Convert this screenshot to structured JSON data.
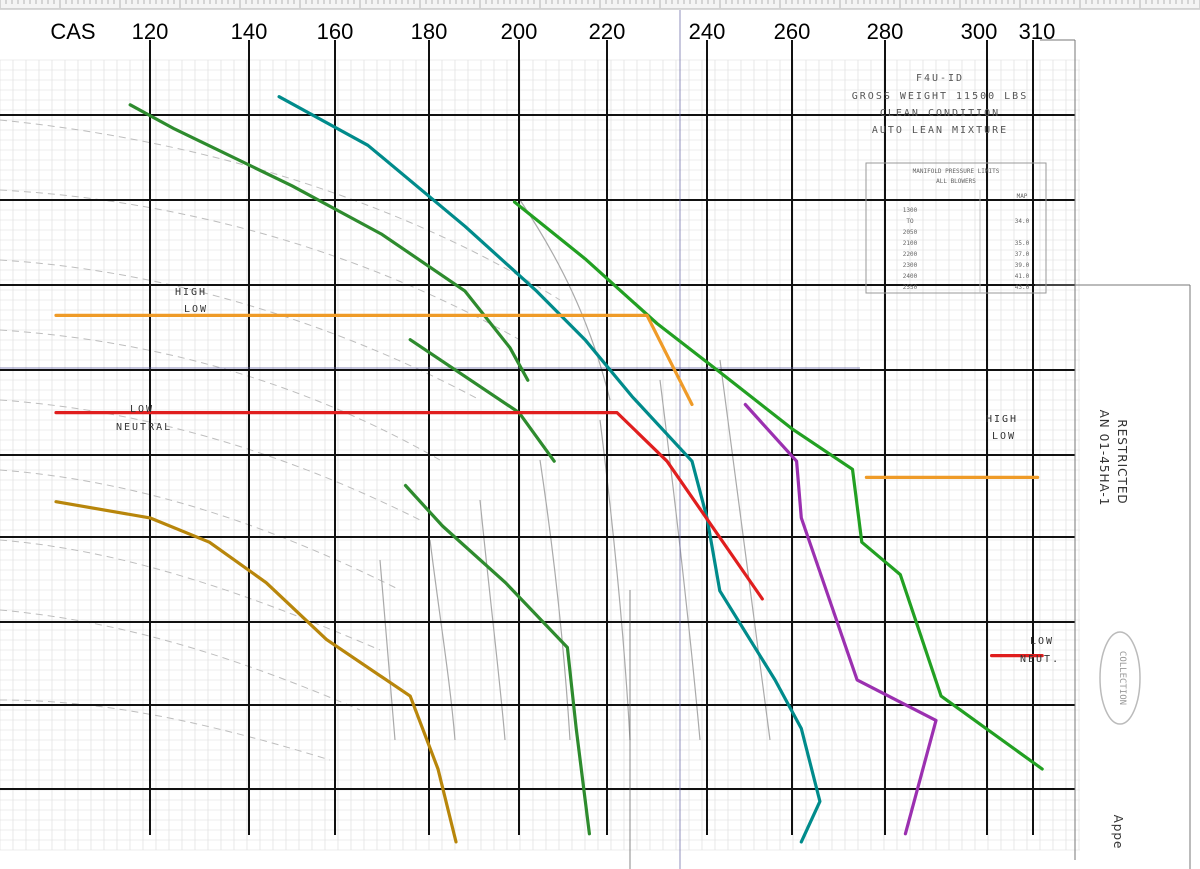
{
  "chart_data": {
    "type": "line",
    "title": "F4U-ID",
    "subtitle_lines": [
      "GROSS WEIGHT 11500 LBS",
      "CLEAN CONDITION",
      "AUTO LEAN MIXTURE"
    ],
    "side_text": [
      "RESTRICTED",
      "AN 01-45HA-1"
    ],
    "stamp_text": "COLLECTION",
    "corner_text": "Appe",
    "xaxis": {
      "label": "CAS",
      "ticks": [
        120,
        140,
        160,
        180,
        200,
        220,
        240,
        260,
        280,
        300,
        310
      ]
    },
    "table": {
      "title": "MANIFOLD PRESSURE LIMITS",
      "subtitle": "ALL BLOWERS",
      "col_header": "MAP",
      "rows": [
        {
          "rpm": "1300",
          "map": ""
        },
        {
          "rpm": "TO",
          "map": "34.0"
        },
        {
          "rpm": "2050",
          "map": ""
        },
        {
          "rpm": "2100",
          "map": "35.0"
        },
        {
          "rpm": "2200",
          "map": "37.0"
        },
        {
          "rpm": "2300",
          "map": "39.0"
        },
        {
          "rpm": "2400",
          "map": "41.0"
        },
        {
          "rpm": "2550",
          "map": "43.0"
        }
      ]
    },
    "mode_labels": [
      {
        "lines": [
          "HIGH",
          "LOW"
        ],
        "color": "#333333"
      },
      {
        "lines": [
          "LOW",
          "NEUTRAL"
        ],
        "color": "#333333"
      },
      {
        "lines": [
          "HIGH",
          "LOW"
        ],
        "color": "#333333"
      },
      {
        "lines": [
          "LOW",
          "NEUT."
        ],
        "color": "#333333"
      }
    ],
    "series": [
      {
        "color": "#008b8b",
        "values": [
          [
            147,
            0.93
          ],
          [
            167,
            0.87
          ],
          [
            188,
            0.77
          ],
          [
            204,
            0.69
          ],
          [
            215,
            0.63
          ],
          [
            225,
            0.56
          ],
          [
            237,
            0.48
          ],
          [
            240,
            0.41
          ],
          [
            243,
            0.32
          ],
          [
            256,
            0.21
          ],
          [
            262,
            0.15
          ],
          [
            266,
            0.06
          ],
          [
            262,
            0.01
          ]
        ]
      },
      {
        "color": "#2e8b2e",
        "values": [
          [
            116,
            0.92
          ],
          [
            125,
            0.89
          ],
          [
            150,
            0.82
          ],
          [
            170,
            0.76
          ],
          [
            188,
            0.69
          ],
          [
            198,
            0.62
          ],
          [
            202,
            0.58
          ]
        ]
      },
      {
        "color": "#2e8b2e",
        "values": [
          [
            176,
            0.63
          ],
          [
            200,
            0.54
          ],
          [
            208,
            0.48
          ]
        ]
      },
      {
        "color": "#2e8b2e",
        "values": [
          [
            175,
            0.45
          ],
          [
            183,
            0.4
          ],
          [
            197,
            0.33
          ],
          [
            211,
            0.25
          ],
          [
            213,
            0.15
          ],
          [
            216,
            0.02
          ]
        ]
      },
      {
        "color": "#22a022",
        "values": [
          [
            199,
            0.8
          ],
          [
            215,
            0.73
          ],
          [
            230,
            0.65
          ],
          [
            243,
            0.59
          ],
          [
            260,
            0.52
          ],
          [
            273,
            0.47
          ],
          [
            275,
            0.38
          ],
          [
            283,
            0.34
          ],
          [
            291,
            0.19
          ],
          [
            312,
            0.1
          ]
        ]
      },
      {
        "color": "#9b30b0",
        "values": [
          [
            249,
            0.55
          ],
          [
            261,
            0.48
          ],
          [
            262,
            0.41
          ],
          [
            268,
            0.31
          ],
          [
            274,
            0.21
          ],
          [
            290,
            0.16
          ],
          [
            284,
            0.02
          ]
        ]
      },
      {
        "color": "#ef9b28",
        "values": [
          [
            101,
            0.66
          ],
          [
            228,
            0.66
          ],
          [
            237,
            0.55
          ]
        ]
      },
      {
        "color": "#ef9b28",
        "values": [
          [
            276,
            0.46
          ],
          [
            311,
            0.46
          ]
        ]
      },
      {
        "color": "#e01e1e",
        "values": [
          [
            101,
            0.54
          ],
          [
            222,
            0.54
          ],
          [
            232,
            0.48
          ],
          [
            253,
            0.31
          ]
        ]
      },
      {
        "color": "#e01e1e",
        "values": [
          [
            301,
            0.24
          ],
          [
            312,
            0.24
          ]
        ]
      },
      {
        "color": "#b8860b",
        "values": [
          [
            101,
            0.43
          ],
          [
            120,
            0.41
          ],
          [
            132,
            0.38
          ],
          [
            144,
            0.33
          ],
          [
            158,
            0.26
          ],
          [
            176,
            0.19
          ],
          [
            182,
            0.1
          ],
          [
            186,
            0.01
          ]
        ]
      }
    ]
  }
}
